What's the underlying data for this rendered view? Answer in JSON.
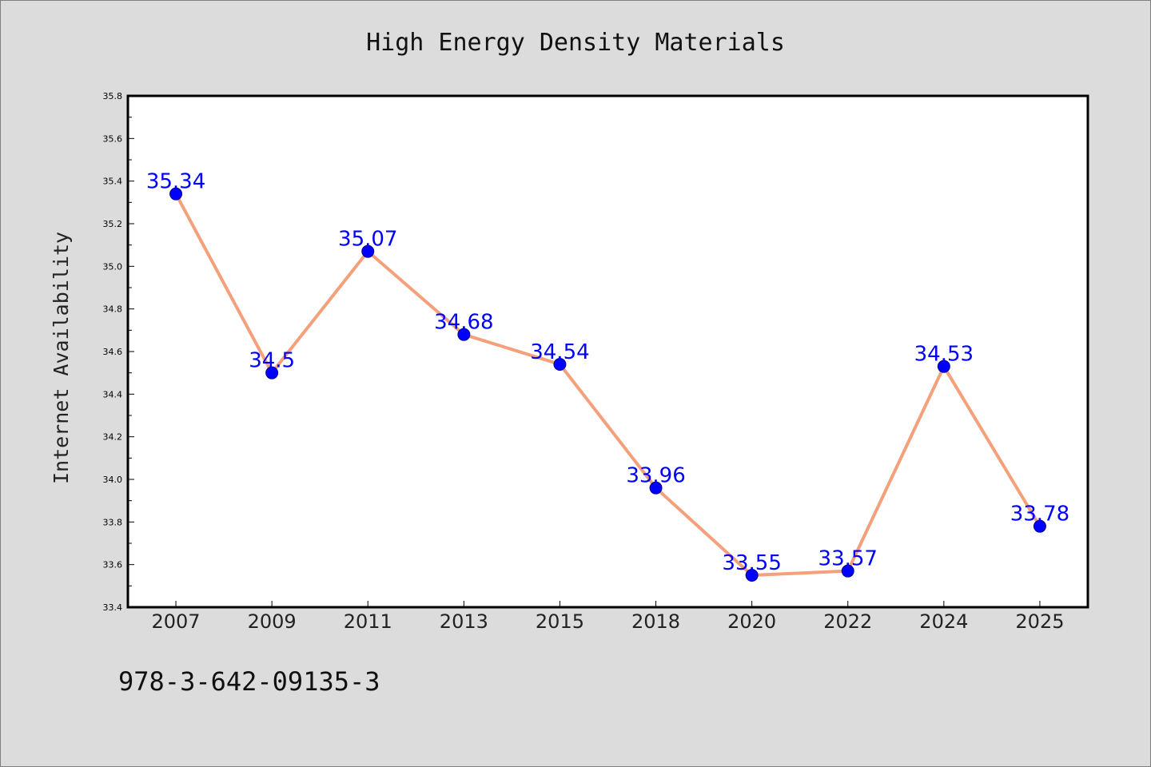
{
  "chart_data": {
    "type": "line",
    "title": "High Energy Density Materials",
    "xlabel": "",
    "ylabel": "Internet Availability",
    "categories": [
      "2007",
      "2009",
      "2011",
      "2013",
      "2015",
      "2018",
      "2020",
      "2022",
      "2024",
      "2025"
    ],
    "series": [
      {
        "values": [
          35.34,
          34.5,
          35.07,
          34.68,
          34.54,
          33.96,
          33.55,
          33.57,
          34.53,
          33.78
        ],
        "data_labels": [
          "35.34",
          "34.5",
          "35.07",
          "34.68",
          "34.54",
          "33.96",
          "33.55",
          "33.57",
          "34.53",
          "33.78"
        ],
        "line_color": "#f4a07a",
        "marker_color": "#0000ff"
      }
    ],
    "ylim": [
      33.4,
      35.8
    ],
    "yticks": [
      "33.4",
      "33.6",
      "33.8",
      "34.0",
      "34.2",
      "34.4",
      "34.6",
      "34.8",
      "35.0",
      "35.2",
      "35.4",
      "35.6",
      "35.8"
    ],
    "grid": false,
    "legend": "none"
  },
  "footer": {
    "text": "978-3-642-09135-3"
  }
}
